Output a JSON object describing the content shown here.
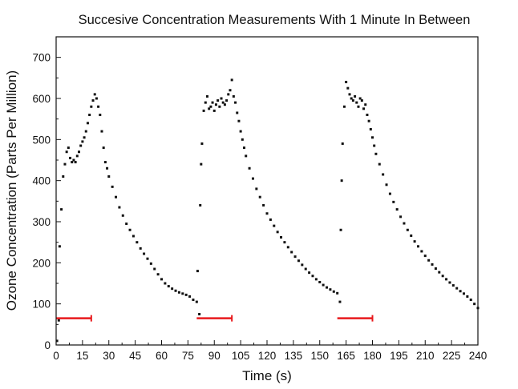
{
  "chart_data": {
    "type": "scatter",
    "title": "Succesive Concentration Measurements With 1 Minute In Between",
    "xlabel": "Time (s)",
    "ylabel": "Ozone Concentration (Parts Per Million)",
    "xlim": [
      0,
      240
    ],
    "ylim": [
      0,
      750
    ],
    "xticks": [
      "0",
      "15",
      "30",
      "45",
      "60",
      "75",
      "90",
      "105",
      "120",
      "135",
      "150",
      "165",
      "180",
      "195",
      "210",
      "225",
      "240"
    ],
    "yticks": [
      "0",
      "100",
      "200",
      "300",
      "400",
      "500",
      "600",
      "700"
    ],
    "grid": false,
    "marker_color": "#111111",
    "interval_color": "#e8191c",
    "series": [
      {
        "values": [
          [
            0.5,
            10
          ],
          [
            1.5,
            60
          ],
          [
            2,
            240
          ],
          [
            3,
            330
          ],
          [
            4,
            410
          ],
          [
            5,
            440
          ],
          [
            6,
            470
          ],
          [
            7,
            480
          ],
          [
            8,
            455
          ],
          [
            9,
            445
          ],
          [
            10,
            450
          ],
          [
            11,
            445
          ],
          [
            12,
            460
          ],
          [
            13,
            470
          ],
          [
            14,
            485
          ],
          [
            15,
            495
          ],
          [
            16,
            505
          ],
          [
            17,
            520
          ],
          [
            18,
            540
          ],
          [
            19,
            560
          ],
          [
            20,
            580
          ],
          [
            21,
            595
          ],
          [
            22,
            610
          ],
          [
            23,
            600
          ],
          [
            24,
            580
          ],
          [
            25,
            560
          ],
          [
            26,
            520
          ],
          [
            27,
            480
          ],
          [
            28,
            445
          ],
          [
            29,
            430
          ],
          [
            30,
            410
          ],
          [
            32,
            385
          ],
          [
            34,
            360
          ],
          [
            36,
            335
          ],
          [
            38,
            315
          ],
          [
            40,
            295
          ],
          [
            42,
            280
          ],
          [
            44,
            265
          ],
          [
            46,
            250
          ],
          [
            48,
            235
          ],
          [
            50,
            222
          ],
          [
            52,
            210
          ],
          [
            54,
            198
          ],
          [
            56,
            185
          ],
          [
            58,
            172
          ],
          [
            60,
            160
          ],
          [
            62,
            150
          ],
          [
            64,
            143
          ],
          [
            66,
            137
          ],
          [
            68,
            132
          ],
          [
            70,
            128
          ],
          [
            72,
            125
          ],
          [
            74,
            122
          ],
          [
            76,
            118
          ],
          [
            78,
            110
          ],
          [
            80,
            105
          ],
          [
            80.5,
            180
          ],
          [
            81.5,
            75
          ],
          [
            82,
            340
          ],
          [
            82.5,
            440
          ],
          [
            83,
            490
          ],
          [
            84,
            570
          ],
          [
            85,
            590
          ],
          [
            86,
            605
          ],
          [
            87,
            575
          ],
          [
            88,
            580
          ],
          [
            89,
            590
          ],
          [
            90,
            570
          ],
          [
            91,
            585
          ],
          [
            92,
            595
          ],
          [
            93,
            580
          ],
          [
            94,
            600
          ],
          [
            95,
            590
          ],
          [
            96,
            585
          ],
          [
            97,
            595
          ],
          [
            98,
            610
          ],
          [
            99,
            620
          ],
          [
            100,
            645
          ],
          [
            101,
            605
          ],
          [
            102,
            590
          ],
          [
            103,
            565
          ],
          [
            104,
            545
          ],
          [
            105,
            520
          ],
          [
            106,
            500
          ],
          [
            107,
            480
          ],
          [
            108,
            460
          ],
          [
            110,
            430
          ],
          [
            112,
            405
          ],
          [
            114,
            380
          ],
          [
            116,
            360
          ],
          [
            118,
            340
          ],
          [
            120,
            320
          ],
          [
            122,
            305
          ],
          [
            124,
            290
          ],
          [
            126,
            275
          ],
          [
            128,
            262
          ],
          [
            130,
            250
          ],
          [
            132,
            238
          ],
          [
            134,
            226
          ],
          [
            136,
            215
          ],
          [
            138,
            205
          ],
          [
            140,
            195
          ],
          [
            142,
            185
          ],
          [
            144,
            176
          ],
          [
            146,
            168
          ],
          [
            148,
            160
          ],
          [
            150,
            153
          ],
          [
            152,
            146
          ],
          [
            154,
            140
          ],
          [
            156,
            135
          ],
          [
            158,
            130
          ],
          [
            160,
            126
          ],
          [
            161.5,
            105
          ],
          [
            162,
            280
          ],
          [
            162.5,
            400
          ],
          [
            163,
            490
          ],
          [
            164,
            580
          ],
          [
            165,
            640
          ],
          [
            166,
            625
          ],
          [
            167,
            610
          ],
          [
            168,
            600
          ],
          [
            169,
            595
          ],
          [
            170,
            605
          ],
          [
            171,
            590
          ],
          [
            172,
            580
          ],
          [
            173,
            600
          ],
          [
            174,
            595
          ],
          [
            175,
            575
          ],
          [
            176,
            585
          ],
          [
            177,
            560
          ],
          [
            178,
            545
          ],
          [
            179,
            525
          ],
          [
            180,
            505
          ],
          [
            181,
            485
          ],
          [
            182,
            465
          ],
          [
            184,
            440
          ],
          [
            186,
            415
          ],
          [
            188,
            390
          ],
          [
            190,
            368
          ],
          [
            192,
            348
          ],
          [
            194,
            330
          ],
          [
            196,
            312
          ],
          [
            198,
            296
          ],
          [
            200,
            280
          ],
          [
            202,
            266
          ],
          [
            204,
            252
          ],
          [
            206,
            240
          ],
          [
            208,
            228
          ],
          [
            210,
            217
          ],
          [
            212,
            206
          ],
          [
            214,
            196
          ],
          [
            216,
            186
          ],
          [
            218,
            177
          ],
          [
            220,
            168
          ],
          [
            222,
            160
          ],
          [
            224,
            152
          ],
          [
            226,
            145
          ],
          [
            228,
            138
          ],
          [
            230,
            131
          ],
          [
            232,
            125
          ],
          [
            234,
            118
          ],
          [
            236,
            110
          ],
          [
            238,
            100
          ],
          [
            240,
            90
          ]
        ]
      }
    ],
    "intervals": [
      [
        0,
        20
      ],
      [
        80,
        100
      ],
      [
        160,
        180
      ]
    ],
    "interval_y": 65
  }
}
